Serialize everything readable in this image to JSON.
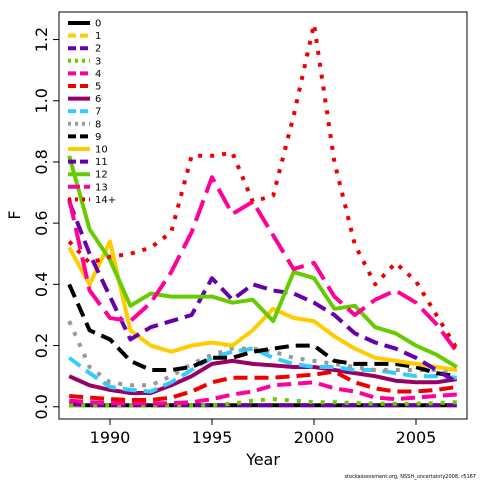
{
  "chart_data": {
    "type": "line",
    "xlabel": "Year",
    "ylabel": "F",
    "xlim": [
      1987.5,
      2007.5
    ],
    "ylim": [
      -0.04,
      1.29
    ],
    "xticks": [
      1990,
      1995,
      2000,
      2005
    ],
    "yticks": [
      "0.0",
      "0.2",
      "0.4",
      "0.6",
      "0.8",
      "1.0",
      "1.2"
    ],
    "legend_position": "top-left",
    "credit": "stockassessment.org, NSSH_uncertainty2008, r5167",
    "x": [
      1988,
      1989,
      1990,
      1991,
      1992,
      1993,
      1994,
      1995,
      1996,
      1997,
      1998,
      1999,
      2000,
      2001,
      2002,
      2003,
      2004,
      2005,
      2006,
      2007
    ],
    "series": [
      {
        "name": "0",
        "color": "#000000",
        "dash": "solid",
        "values": [
          0.005,
          0.005,
          0.005,
          0.005,
          0.005,
          0.005,
          0.005,
          0.005,
          0.005,
          0.005,
          0.005,
          0.005,
          0.005,
          0.005,
          0.005,
          0.005,
          0.005,
          0.005,
          0.005,
          0.005
        ]
      },
      {
        "name": "1",
        "color": "#FFCC00",
        "dash": "dash",
        "values": [
          0.005,
          0.005,
          0.005,
          0.005,
          0.005,
          0.005,
          0.005,
          0.005,
          0.005,
          0.005,
          0.005,
          0.005,
          0.005,
          0.005,
          0.005,
          0.005,
          0.005,
          0.005,
          0.005,
          0.005
        ]
      },
      {
        "name": "2",
        "color": "#6600AA",
        "dash": "dash",
        "values": [
          0.008,
          0.005,
          0.005,
          0.005,
          0.005,
          0.005,
          0.005,
          0.005,
          0.005,
          0.005,
          0.005,
          0.005,
          0.005,
          0.005,
          0.005,
          0.005,
          0.005,
          0.005,
          0.005,
          0.005
        ]
      },
      {
        "name": "3",
        "color": "#66CC00",
        "dash": "dot",
        "values": [
          0.005,
          0.005,
          0.005,
          0.005,
          0.005,
          0.005,
          0.005,
          0.005,
          0.01,
          0.02,
          0.025,
          0.02,
          0.015,
          0.015,
          0.012,
          0.01,
          0.01,
          0.01,
          0.012,
          0.015
        ]
      },
      {
        "name": "4",
        "color": "#FF0099",
        "dash": "dash",
        "values": [
          0.02,
          0.015,
          0.012,
          0.012,
          0.01,
          0.012,
          0.015,
          0.025,
          0.04,
          0.05,
          0.07,
          0.075,
          0.08,
          0.06,
          0.05,
          0.03,
          0.025,
          0.03,
          0.035,
          0.04
        ]
      },
      {
        "name": "5",
        "color": "#EE0000",
        "dash": "dash",
        "values": [
          0.035,
          0.03,
          0.025,
          0.022,
          0.022,
          0.03,
          0.05,
          0.08,
          0.095,
          0.095,
          0.095,
          0.1,
          0.105,
          0.115,
          0.08,
          0.06,
          0.05,
          0.05,
          0.055,
          0.065
        ]
      },
      {
        "name": "6",
        "color": "#990066",
        "dash": "solid",
        "values": [
          0.1,
          0.07,
          0.055,
          0.045,
          0.045,
          0.07,
          0.1,
          0.14,
          0.15,
          0.14,
          0.135,
          0.13,
          0.13,
          0.12,
          0.11,
          0.1,
          0.085,
          0.08,
          0.08,
          0.09
        ]
      },
      {
        "name": "7",
        "color": "#33CCFF",
        "dash": "dash",
        "values": [
          0.16,
          0.11,
          0.065,
          0.055,
          0.05,
          0.08,
          0.12,
          0.16,
          0.18,
          0.19,
          0.16,
          0.14,
          0.13,
          0.13,
          0.12,
          0.12,
          0.11,
          0.1,
          0.1,
          0.095
        ]
      },
      {
        "name": "8",
        "color": "#999999",
        "dash": "dot",
        "values": [
          0.28,
          0.13,
          0.08,
          0.07,
          0.07,
          0.1,
          0.14,
          0.17,
          0.19,
          0.19,
          0.18,
          0.16,
          0.15,
          0.14,
          0.13,
          0.12,
          0.12,
          0.12,
          0.12,
          0.12
        ]
      },
      {
        "name": "9",
        "color": "#000000",
        "dash": "dash",
        "values": [
          0.4,
          0.25,
          0.22,
          0.15,
          0.12,
          0.12,
          0.13,
          0.16,
          0.16,
          0.18,
          0.19,
          0.2,
          0.2,
          0.15,
          0.14,
          0.14,
          0.14,
          0.13,
          0.11,
          0.1
        ]
      },
      {
        "name": "10",
        "color": "#FFCC00",
        "dash": "solid",
        "values": [
          0.52,
          0.4,
          0.54,
          0.25,
          0.2,
          0.18,
          0.2,
          0.21,
          0.2,
          0.25,
          0.32,
          0.29,
          0.28,
          0.23,
          0.19,
          0.16,
          0.15,
          0.14,
          0.13,
          0.12
        ]
      },
      {
        "name": "11",
        "color": "#6600AA",
        "dash": "dash",
        "values": [
          0.67,
          0.5,
          0.36,
          0.22,
          0.26,
          0.28,
          0.3,
          0.42,
          0.35,
          0.4,
          0.38,
          0.37,
          0.34,
          0.3,
          0.24,
          0.21,
          0.19,
          0.16,
          0.12,
          0.08
        ]
      },
      {
        "name": "12",
        "color": "#66CC00",
        "dash": "solid",
        "values": [
          0.82,
          0.58,
          0.48,
          0.33,
          0.37,
          0.36,
          0.36,
          0.36,
          0.34,
          0.35,
          0.28,
          0.44,
          0.42,
          0.32,
          0.33,
          0.26,
          0.24,
          0.2,
          0.17,
          0.13
        ]
      },
      {
        "name": "13",
        "color": "#FF0099",
        "dash": "longdash",
        "values": [
          0.68,
          0.38,
          0.29,
          0.28,
          0.34,
          0.44,
          0.57,
          0.75,
          0.63,
          0.67,
          0.56,
          0.45,
          0.47,
          0.36,
          0.3,
          0.35,
          0.38,
          0.34,
          0.27,
          0.18
        ]
      },
      {
        "name": "14+",
        "color": "#EE0000",
        "dash": "dot",
        "values": [
          0.54,
          0.47,
          0.49,
          0.5,
          0.52,
          0.57,
          0.82,
          0.82,
          0.83,
          0.67,
          0.69,
          0.95,
          1.25,
          0.8,
          0.53,
          0.4,
          0.47,
          0.41,
          0.3,
          0.19
        ]
      }
    ]
  }
}
